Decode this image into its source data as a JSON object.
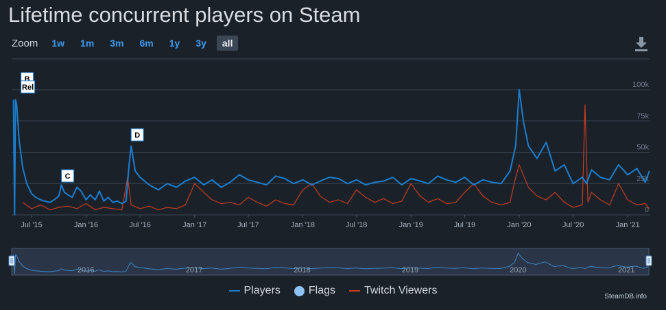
{
  "title": "Lifetime concurrent players on Steam",
  "zoom": {
    "label": "Zoom",
    "options": [
      "1w",
      "1m",
      "3m",
      "6m",
      "1y",
      "3y",
      "all"
    ],
    "active": "all"
  },
  "legend": {
    "players": "Players",
    "flags": "Flags",
    "twitch": "Twitch Viewers"
  },
  "credit": "SteamDB.info",
  "icons": {
    "download": "download-icon"
  },
  "colors": {
    "players": "#1a7fd1",
    "twitch": "#c73d1f",
    "flag_border": "#1a7fd1",
    "navigator_bg": "#2a3647"
  },
  "chart_data": {
    "type": "line",
    "x_ticks": [
      "Jul '15",
      "Jan '16",
      "Jul '16",
      "Jan '17",
      "Jul '17",
      "Jan '18",
      "Jul '18",
      "Jan '19",
      "Jul '19",
      "Jan '20",
      "Jul '20",
      "Jan '21"
    ],
    "y_ticks": [
      "0",
      "25k",
      "50k",
      "75k",
      "100k"
    ],
    "ylim": [
      0,
      100000
    ],
    "grid": true,
    "legend_position": "bottom-center",
    "navigator_labels": [
      "2016",
      "2017",
      "2018",
      "2019",
      "2020",
      "2021"
    ],
    "series": [
      {
        "name": "Players",
        "x": [
          "2015-05-01",
          "2015-05-05",
          "2015-05-08",
          "2015-05-12",
          "2015-05-20",
          "2015-06-01",
          "2015-06-15",
          "2015-07-01",
          "2015-07-15",
          "2015-08-01",
          "2015-08-15",
          "2015-09-01",
          "2015-09-15",
          "2015-10-01",
          "2015-10-10",
          "2015-10-20",
          "2015-11-01",
          "2015-11-15",
          "2015-12-01",
          "2015-12-15",
          "2016-01-01",
          "2016-01-15",
          "2016-02-01",
          "2016-02-15",
          "2016-03-01",
          "2016-03-15",
          "2016-04-01",
          "2016-04-15",
          "2016-05-01",
          "2016-05-15",
          "2016-05-25",
          "2016-06-01",
          "2016-06-15",
          "2016-07-01",
          "2016-08-01",
          "2016-09-01",
          "2016-10-01",
          "2016-11-01",
          "2016-12-01",
          "2017-01-01",
          "2017-02-01",
          "2017-03-01",
          "2017-04-01",
          "2017-05-01",
          "2017-06-01",
          "2017-07-01",
          "2017-08-01",
          "2017-09-01",
          "2017-10-01",
          "2017-11-01",
          "2017-12-01",
          "2018-01-01",
          "2018-02-01",
          "2018-03-01",
          "2018-04-01",
          "2018-05-01",
          "2018-06-01",
          "2018-07-01",
          "2018-08-01",
          "2018-09-01",
          "2018-10-01",
          "2018-11-01",
          "2018-12-01",
          "2019-01-01",
          "2019-02-01",
          "2019-03-01",
          "2019-04-01",
          "2019-05-01",
          "2019-06-01",
          "2019-07-01",
          "2019-08-01",
          "2019-09-01",
          "2019-10-01",
          "2019-11-01",
          "2019-12-01",
          "2019-12-20",
          "2020-01-01",
          "2020-01-15",
          "2020-02-01",
          "2020-03-01",
          "2020-04-01",
          "2020-05-01",
          "2020-06-01",
          "2020-07-01",
          "2020-08-01",
          "2020-08-15",
          "2020-09-01",
          "2020-10-01",
          "2020-11-01",
          "2020-12-01",
          "2021-01-01",
          "2021-02-01",
          "2021-03-01",
          "2021-03-15"
        ],
        "y": [
          92000,
          0,
          92000,
          88000,
          60000,
          38000,
          25000,
          17000,
          14000,
          12000,
          11000,
          10000,
          12000,
          15000,
          24000,
          18000,
          16000,
          14000,
          22000,
          19000,
          12000,
          16000,
          12000,
          19000,
          11000,
          14000,
          10000,
          11000,
          9000,
          11000,
          40000,
          55000,
          35000,
          30000,
          24000,
          20000,
          25000,
          22000,
          27000,
          30000,
          24000,
          28000,
          22000,
          26000,
          32000,
          28000,
          26000,
          24000,
          31000,
          29000,
          25000,
          28000,
          24000,
          27000,
          30000,
          29000,
          25000,
          28000,
          24000,
          26000,
          27000,
          30000,
          24000,
          29000,
          27000,
          25000,
          31000,
          28000,
          26000,
          30000,
          24000,
          28000,
          26000,
          25000,
          35000,
          55000,
          100000,
          75000,
          55000,
          45000,
          58000,
          35000,
          40000,
          25000,
          30000,
          25000,
          36000,
          30000,
          28000,
          40000,
          32000,
          37000,
          26000,
          35000
        ]
      },
      {
        "name": "Twitch Viewers",
        "x": [
          "2015-06-01",
          "2015-07-01",
          "2015-08-01",
          "2015-09-01",
          "2015-10-01",
          "2015-11-01",
          "2015-12-01",
          "2016-01-01",
          "2016-02-01",
          "2016-03-01",
          "2016-04-01",
          "2016-05-01",
          "2016-05-20",
          "2016-06-01",
          "2016-07-01",
          "2016-08-01",
          "2016-09-01",
          "2016-10-01",
          "2016-11-01",
          "2016-12-01",
          "2017-01-01",
          "2017-02-01",
          "2017-03-01",
          "2017-04-01",
          "2017-05-01",
          "2017-06-01",
          "2017-07-01",
          "2017-08-01",
          "2017-09-01",
          "2017-10-01",
          "2017-11-01",
          "2017-12-01",
          "2018-01-01",
          "2018-02-01",
          "2018-03-01",
          "2018-04-01",
          "2018-05-01",
          "2018-06-01",
          "2018-07-01",
          "2018-08-01",
          "2018-09-01",
          "2018-10-01",
          "2018-11-01",
          "2018-12-01",
          "2019-01-01",
          "2019-02-01",
          "2019-03-01",
          "2019-04-01",
          "2019-05-01",
          "2019-06-01",
          "2019-07-01",
          "2019-08-01",
          "2019-09-01",
          "2019-10-01",
          "2019-11-01",
          "2019-12-01",
          "2019-12-20",
          "2020-01-01",
          "2020-02-01",
          "2020-03-01",
          "2020-04-01",
          "2020-05-01",
          "2020-06-01",
          "2020-07-01",
          "2020-08-01",
          "2020-08-10",
          "2020-08-20",
          "2020-09-01",
          "2020-10-01",
          "2020-11-01",
          "2020-12-01",
          "2021-01-01",
          "2021-02-01",
          "2021-03-01",
          "2021-03-15"
        ],
        "y": [
          10000,
          5000,
          8000,
          4000,
          6000,
          7000,
          5000,
          9000,
          4000,
          6000,
          5000,
          4000,
          30000,
          8000,
          5000,
          7000,
          4000,
          6000,
          5000,
          8000,
          25000,
          18000,
          12000,
          9000,
          10000,
          8000,
          14000,
          10000,
          7000,
          12000,
          9000,
          8000,
          20000,
          25000,
          15000,
          10000,
          12000,
          9000,
          20000,
          14000,
          10000,
          13000,
          9000,
          11000,
          25000,
          15000,
          10000,
          13000,
          9000,
          10000,
          18000,
          25000,
          15000,
          10000,
          8000,
          10000,
          30000,
          40000,
          22000,
          15000,
          12000,
          18000,
          10000,
          6000,
          8000,
          88000,
          10000,
          18000,
          12000,
          8000,
          25000,
          12000,
          8000,
          9000,
          5000
        ]
      }
    ],
    "flags": [
      {
        "label": "B",
        "x": "2015-05-08"
      },
      {
        "label": "Rel",
        "x": "2015-05-08"
      },
      {
        "label": "C",
        "x": "2015-10-10"
      },
      {
        "label": "D",
        "x": "2016-06-01"
      }
    ]
  }
}
